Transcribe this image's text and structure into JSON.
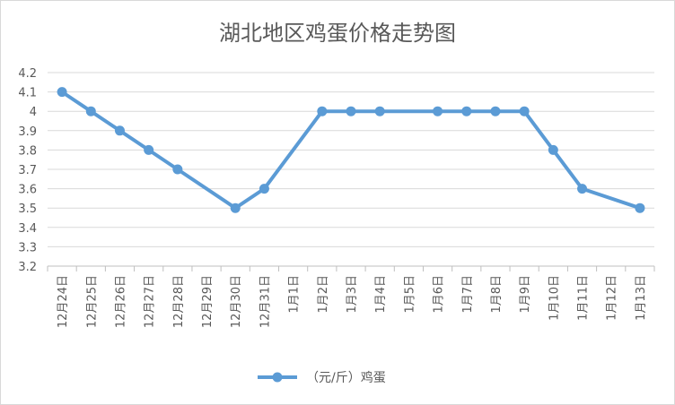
{
  "chart_data": {
    "type": "line",
    "title": "湖北地区鸡蛋价格走势图",
    "categories": [
      "12月24日",
      "12月25日",
      "12月26日",
      "12月27日",
      "12月28日",
      "12月29日",
      "12月30日",
      "12月31日",
      "1月1日",
      "1月2日",
      "1月3日",
      "1月4日",
      "1月5日",
      "1月6日",
      "1月7日",
      "1月8日",
      "1月9日",
      "1月10日",
      "1月11日",
      "1月12日",
      "1月13日"
    ],
    "series": [
      {
        "name": "（元/斤）鸡蛋",
        "color": "#5b9bd5",
        "values": [
          4.1,
          4.0,
          3.9,
          3.8,
          3.7,
          null,
          3.5,
          3.6,
          null,
          4.0,
          4.0,
          4.0,
          null,
          4.0,
          4.0,
          4.0,
          4.0,
          3.8,
          3.6,
          null,
          3.5
        ]
      }
    ],
    "y_ticks": [
      "3.2",
      "3.3",
      "3.4",
      "3.5",
      "3.6",
      "3.7",
      "3.8",
      "3.9",
      "4",
      "4.1",
      "4.2"
    ],
    "ylim": [
      3.2,
      4.2
    ],
    "grid": true,
    "legend_position": "bottom"
  }
}
